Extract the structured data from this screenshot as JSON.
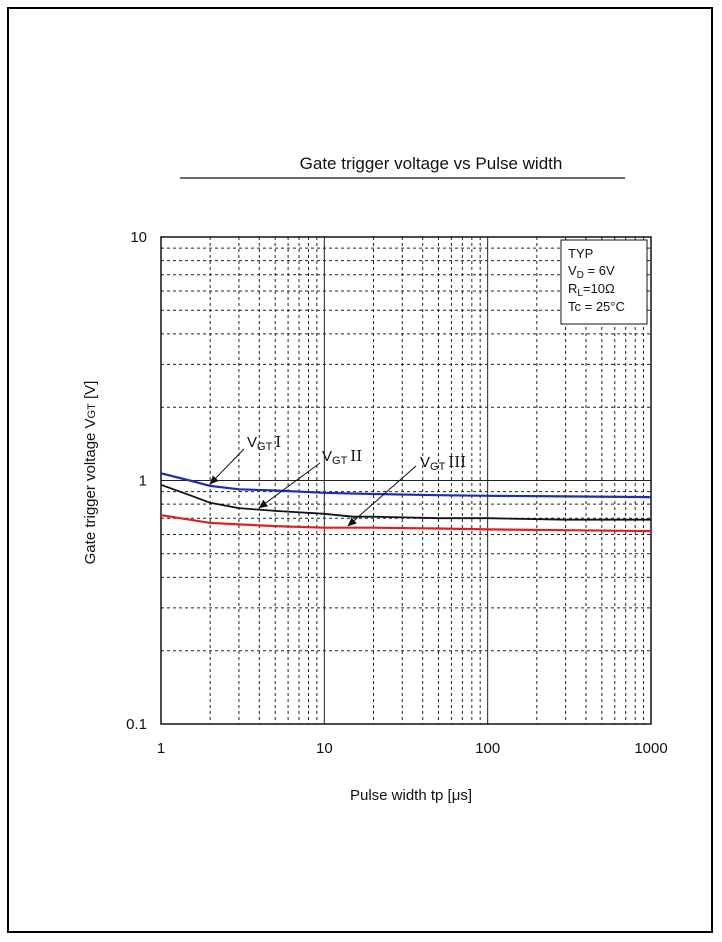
{
  "chart_data": {
    "type": "line",
    "title": "Gate trigger voltage vs Pulse width",
    "xlabel": "Pulse width tp [μs]",
    "ylabel": "Gate trigger voltage V",
    "ylabel_sub": "GT",
    "ylabel_unit": " [V]",
    "x_scale": "log",
    "y_scale": "log",
    "xlim": [
      1,
      1000
    ],
    "ylim": [
      0.1,
      10
    ],
    "grid": true,
    "x_ticks": [
      "1",
      "10",
      "100",
      "1000"
    ],
    "y_ticks": [
      "0.1",
      "1",
      "10"
    ],
    "conditions": {
      "line1": "TYP",
      "line2_main": "V",
      "line2_sub": "D",
      "line2_rest": " = 6V",
      "line3_main": "R",
      "line3_sub": "L",
      "line3_rest": "=10Ω",
      "line4": "Tc = 25°C",
      "placement": "top-right"
    },
    "series": [
      {
        "name": "VGT I",
        "label_main": "V",
        "label_sub": "GT",
        "label_roman": "I",
        "color": "#1c2fb0",
        "x": [
          1,
          1.5,
          2,
          3,
          5,
          10,
          20,
          50,
          100,
          300,
          1000
        ],
        "y": [
          1.07,
          1.0,
          0.95,
          0.92,
          0.91,
          0.89,
          0.88,
          0.87,
          0.865,
          0.86,
          0.855
        ]
      },
      {
        "name": "VGT II",
        "label_main": "V",
        "label_sub": "GT",
        "label_roman": "II",
        "color": "#111111",
        "x": [
          1,
          1.5,
          2,
          3,
          5,
          10,
          15,
          20,
          50,
          100,
          300,
          1000
        ],
        "y": [
          0.96,
          0.87,
          0.81,
          0.77,
          0.75,
          0.73,
          0.71,
          0.71,
          0.7,
          0.7,
          0.69,
          0.69
        ]
      },
      {
        "name": "VGT III",
        "label_main": "V",
        "label_sub": "GT",
        "label_roman": "III",
        "color": "#e02020",
        "x": [
          1,
          1.5,
          2,
          3,
          5,
          10,
          20,
          50,
          100,
          300,
          1000
        ],
        "y": [
          0.72,
          0.69,
          0.67,
          0.66,
          0.65,
          0.64,
          0.64,
          0.635,
          0.63,
          0.625,
          0.62
        ]
      }
    ]
  }
}
